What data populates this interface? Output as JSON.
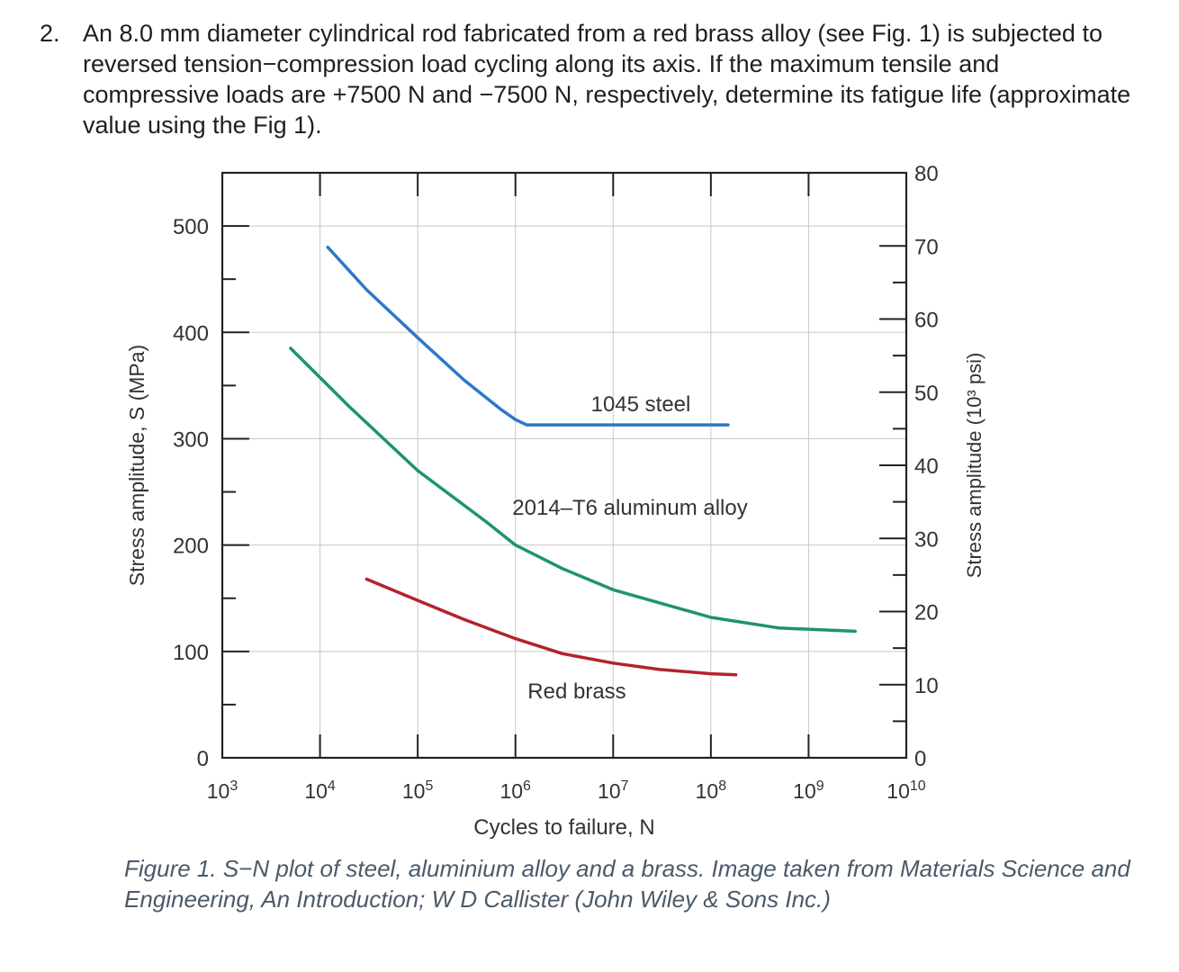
{
  "problem": {
    "number": "2.",
    "text": "An 8.0 mm diameter cylindrical rod fabricated from a red brass alloy (see Fig. 1) is subjected to reversed tension−compression load cycling along its axis. If the maximum tensile and compressive loads are +7500 N and −7500 N, respectively, determine its fatigue life (approximate value using the Fig 1)."
  },
  "caption": "Figure 1. S−N plot of steel, aluminium alloy and a brass. Image taken from Materials Science and Engineering, An Introduction; W D Callister (John Wiley & Sons Inc.)",
  "chart_data": {
    "type": "line",
    "xscale": "log",
    "xlim": [
      1000,
      10000000000
    ],
    "ylim": [
      0,
      550
    ],
    "y2lim": [
      0,
      80
    ],
    "grid": true,
    "xlabel": "Cycles to failure, N",
    "ylabel": "Stress amplitude, S (MPa)",
    "y2label": "Stress amplitude (10³ psi)",
    "x_ticks": [
      {
        "base": "10",
        "exp": "3",
        "value": 1000
      },
      {
        "base": "10",
        "exp": "4",
        "value": 10000
      },
      {
        "base": "10",
        "exp": "5",
        "value": 100000
      },
      {
        "base": "10",
        "exp": "6",
        "value": 1000000
      },
      {
        "base": "10",
        "exp": "7",
        "value": 10000000
      },
      {
        "base": "10",
        "exp": "8",
        "value": 100000000
      },
      {
        "base": "10",
        "exp": "9",
        "value": 1000000000
      },
      {
        "base": "10",
        "exp": "10",
        "value": 10000000000
      }
    ],
    "y_ticks": [
      "0",
      "100",
      "200",
      "300",
      "400",
      "500"
    ],
    "y2_ticks": [
      "0",
      "10",
      "20",
      "30",
      "40",
      "50",
      "60",
      "70",
      "80"
    ],
    "series": [
      {
        "name": "1045 steel",
        "color": "#2e78c8",
        "points": [
          [
            12000,
            480
          ],
          [
            30000,
            440
          ],
          [
            100000,
            395
          ],
          [
            300000,
            355
          ],
          [
            700000,
            328
          ],
          [
            1000000,
            318
          ],
          [
            1300000,
            313
          ],
          [
            10000000,
            313
          ],
          [
            150000000,
            313
          ]
        ]
      },
      {
        "name": "2014–T6 aluminum alloy",
        "color": "#1f9467",
        "points": [
          [
            5000,
            385
          ],
          [
            20000,
            330
          ],
          [
            100000,
            270
          ],
          [
            500000,
            222
          ],
          [
            1000000,
            200
          ],
          [
            3000000,
            178
          ],
          [
            10000000,
            158
          ],
          [
            100000000,
            132
          ],
          [
            500000000,
            122
          ],
          [
            3000000000,
            119
          ]
        ]
      },
      {
        "name": "Red brass",
        "color": "#b3232d",
        "points": [
          [
            30000,
            168
          ],
          [
            100000,
            148
          ],
          [
            300000,
            130
          ],
          [
            1000000,
            112
          ],
          [
            3000000,
            98
          ],
          [
            10000000,
            89
          ],
          [
            30000000,
            83
          ],
          [
            100000000,
            79
          ],
          [
            180000000,
            78
          ]
        ]
      }
    ]
  }
}
